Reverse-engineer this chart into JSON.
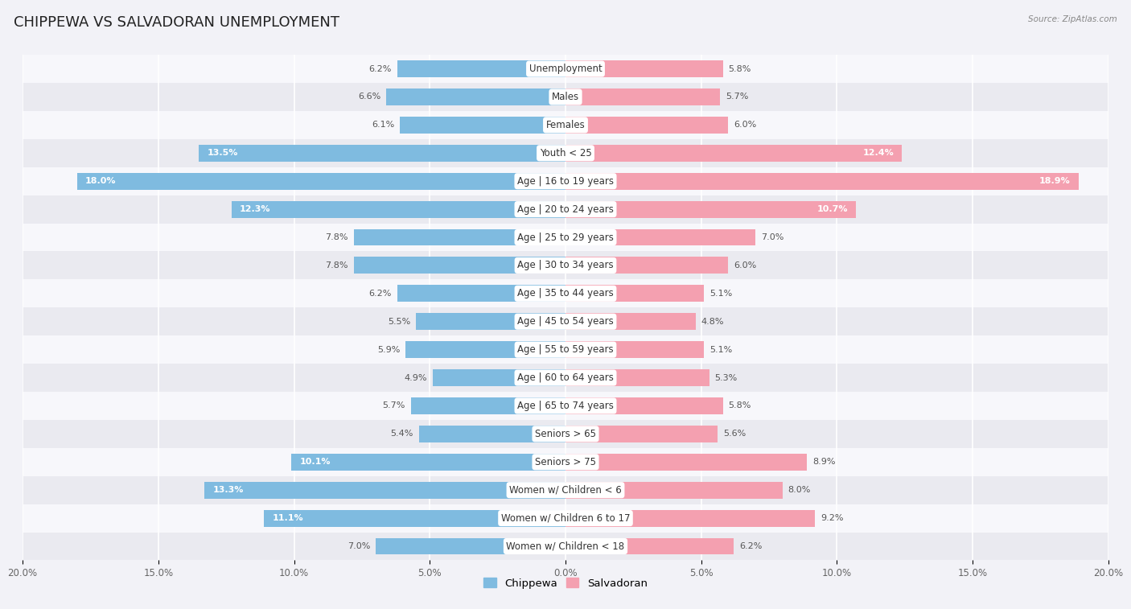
{
  "title": "CHIPPEWA VS SALVADORAN UNEMPLOYMENT",
  "source": "Source: ZipAtlas.com",
  "categories": [
    "Unemployment",
    "Males",
    "Females",
    "Youth < 25",
    "Age | 16 to 19 years",
    "Age | 20 to 24 years",
    "Age | 25 to 29 years",
    "Age | 30 to 34 years",
    "Age | 35 to 44 years",
    "Age | 45 to 54 years",
    "Age | 55 to 59 years",
    "Age | 60 to 64 years",
    "Age | 65 to 74 years",
    "Seniors > 65",
    "Seniors > 75",
    "Women w/ Children < 6",
    "Women w/ Children 6 to 17",
    "Women w/ Children < 18"
  ],
  "chippewa": [
    6.2,
    6.6,
    6.1,
    13.5,
    18.0,
    12.3,
    7.8,
    7.8,
    6.2,
    5.5,
    5.9,
    4.9,
    5.7,
    5.4,
    10.1,
    13.3,
    11.1,
    7.0
  ],
  "salvadoran": [
    5.8,
    5.7,
    6.0,
    12.4,
    18.9,
    10.7,
    7.0,
    6.0,
    5.1,
    4.8,
    5.1,
    5.3,
    5.8,
    5.6,
    8.9,
    8.0,
    9.2,
    6.2
  ],
  "chippewa_color": "#7fbbe0",
  "salvadoran_color": "#f4a0b0",
  "bg_color": "#f2f2f7",
  "row_bg_light": "#f7f7fb",
  "row_bg_dark": "#eaeaf0",
  "xlim": 20.0,
  "legend_labels": [
    "Chippewa",
    "Salvadoran"
  ],
  "title_fontsize": 13,
  "label_fontsize": 8.5,
  "value_fontsize": 8.0,
  "bar_height": 0.6,
  "bold_threshold": 10.0
}
